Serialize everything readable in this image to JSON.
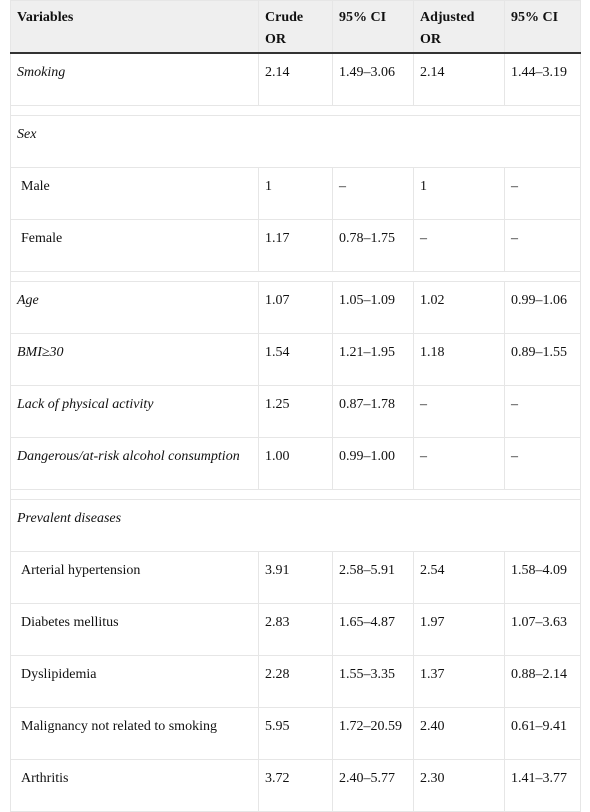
{
  "table": {
    "headers": [
      "Variables",
      "Crude OR",
      "95% CI",
      "Adjusted OR",
      "95% CI"
    ],
    "rows": [
      {
        "kind": "data",
        "italic": true,
        "indent": false,
        "cells": [
          "Smoking",
          "2.14",
          "1.49–3.06",
          "2.14",
          "1.44–3.19"
        ]
      },
      {
        "kind": "spacer"
      },
      {
        "kind": "section",
        "italic": true,
        "cells": [
          "Sex"
        ]
      },
      {
        "kind": "data",
        "italic": false,
        "indent": true,
        "cells": [
          "Male",
          "1",
          "–",
          "1",
          "–"
        ]
      },
      {
        "kind": "data",
        "italic": false,
        "indent": true,
        "cells": [
          "Female",
          "1.17",
          "0.78–1.75",
          "–",
          "–"
        ]
      },
      {
        "kind": "spacer"
      },
      {
        "kind": "data",
        "italic": true,
        "indent": false,
        "cells": [
          "Age",
          "1.07",
          "1.05–1.09",
          "1.02",
          "0.99–1.06"
        ]
      },
      {
        "kind": "data",
        "italic": true,
        "indent": false,
        "cells": [
          "BMI≥30",
          "1.54",
          "1.21–1.95",
          "1.18",
          "0.89–1.55"
        ]
      },
      {
        "kind": "data",
        "italic": true,
        "indent": false,
        "cells": [
          "Lack of physical activity",
          "1.25",
          "0.87–1.78",
          "–",
          "–"
        ]
      },
      {
        "kind": "data",
        "italic": true,
        "indent": false,
        "cells": [
          "Dangerous/at-risk alcohol consumption",
          "1.00",
          "0.99–1.00",
          "–",
          "–"
        ]
      },
      {
        "kind": "spacer"
      },
      {
        "kind": "section",
        "italic": true,
        "cells": [
          "Prevalent diseases"
        ]
      },
      {
        "kind": "data",
        "italic": false,
        "indent": true,
        "cells": [
          "Arterial hypertension",
          "3.91",
          "2.58–5.91",
          "2.54",
          "1.58–4.09"
        ]
      },
      {
        "kind": "data",
        "italic": false,
        "indent": true,
        "cells": [
          "Diabetes mellitus",
          "2.83",
          "1.65–4.87",
          "1.97",
          "1.07–3.63"
        ]
      },
      {
        "kind": "data",
        "italic": false,
        "indent": true,
        "cells": [
          "Dyslipidemia",
          "2.28",
          "1.55–3.35",
          "1.37",
          "0.88–2.14"
        ]
      },
      {
        "kind": "data",
        "italic": false,
        "indent": true,
        "cells": [
          "Malignancy not related to smoking",
          "5.95",
          "1.72–20.59",
          "2.40",
          "0.61–9.41"
        ]
      },
      {
        "kind": "data",
        "italic": false,
        "indent": true,
        "cells": [
          "Arthritis",
          "3.72",
          "2.40–5.77",
          "2.30",
          "1.41–3.77"
        ]
      }
    ]
  }
}
